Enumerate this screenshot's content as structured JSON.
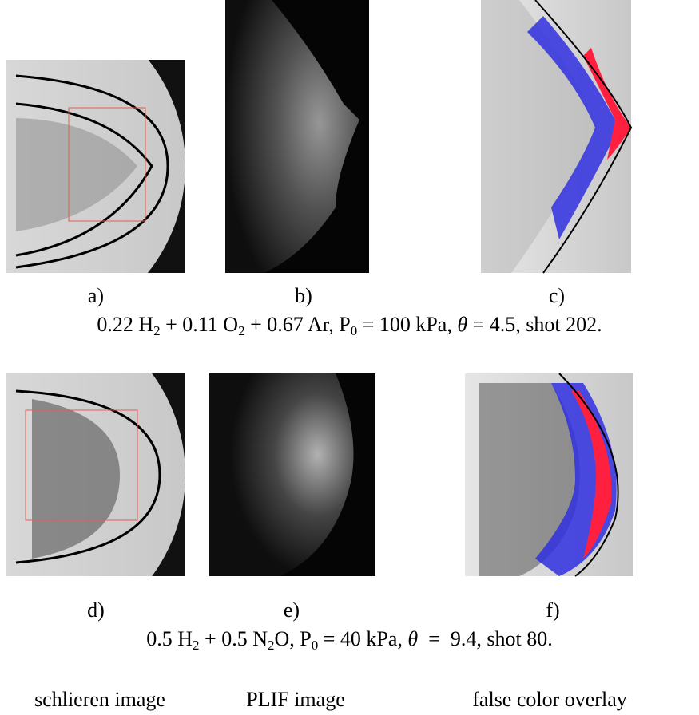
{
  "panels": [
    {
      "label": "a)"
    },
    {
      "label": "b)"
    },
    {
      "label": "c)"
    },
    {
      "label": "d)"
    },
    {
      "label": "e)"
    },
    {
      "label": "f)"
    }
  ],
  "captions": [
    {
      "segments": [
        {
          "text": "0.22 H"
        },
        {
          "text": "2",
          "style": "sub"
        },
        {
          "text": " + 0.11 O"
        },
        {
          "text": "2",
          "style": "sub"
        },
        {
          "text": " + 0.67 Ar, P"
        },
        {
          "text": "0",
          "style": "sub"
        },
        {
          "text": " = 100 kPa, "
        },
        {
          "text": "θ",
          "style": "italic"
        },
        {
          "text": " = 4.5, shot 202."
        }
      ]
    },
    {
      "segments": [
        {
          "text": "0.5 H"
        },
        {
          "text": "2",
          "style": "sub"
        },
        {
          "text": " + 0.5 N"
        },
        {
          "text": "2",
          "style": "sub"
        },
        {
          "text": "O, P"
        },
        {
          "text": "0",
          "style": "sub"
        },
        {
          "text": " = 40 kPa, "
        },
        {
          "text": "θ",
          "style": "italic"
        },
        {
          "text": "  =  9.4, shot 80."
        }
      ]
    }
  ],
  "column_labels": [
    "schlieren image",
    "PLIF image",
    "false color overlay"
  ]
}
